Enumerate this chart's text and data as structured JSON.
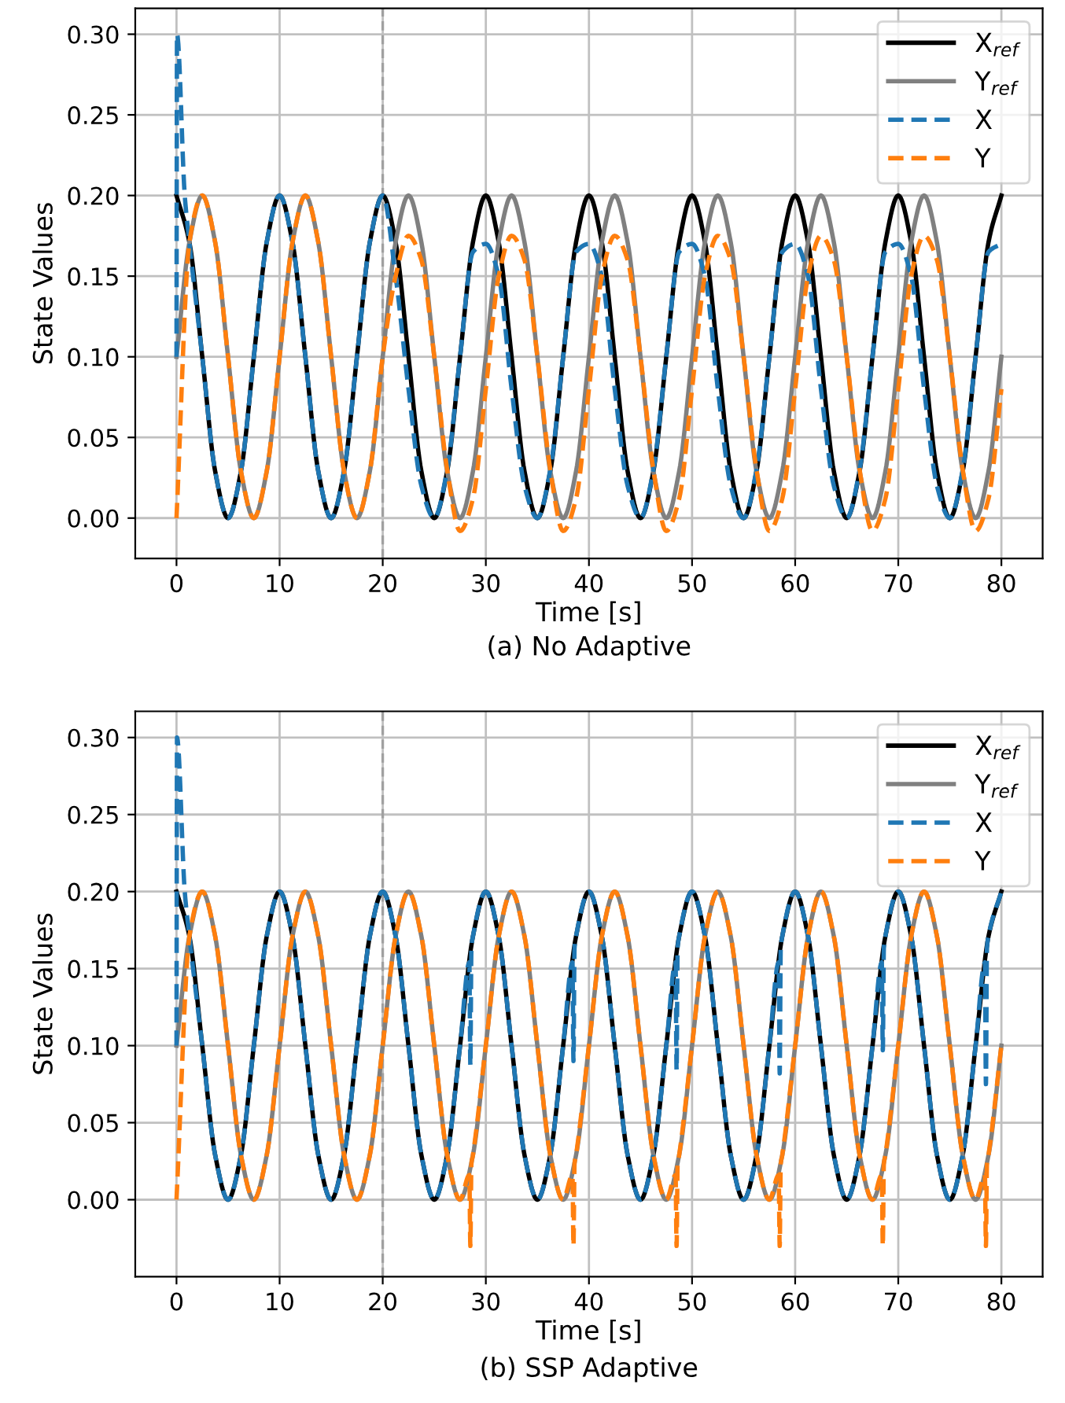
{
  "chart_data": [
    {
      "type": "line",
      "title": "(a) No Adaptive",
      "xlabel": "Time [s]",
      "ylabel": "State Values",
      "x": [
        0,
        1.25,
        2.5,
        3.75,
        5,
        6.25,
        7.5,
        8.75,
        10,
        11.25,
        12.5,
        13.75,
        15,
        16.25,
        17.5,
        18.75,
        20,
        21.25,
        22.5,
        23.75,
        25,
        26.25,
        27.5,
        28.75,
        30,
        31.25,
        32.5,
        33.75,
        35,
        36.25,
        37.5,
        38.75,
        40,
        41.25,
        42.5,
        43.75,
        45,
        46.25,
        47.5,
        48.75,
        50,
        51.25,
        52.5,
        53.75,
        55,
        56.25,
        57.5,
        58.75,
        60,
        61.25,
        62.5,
        63.75,
        65,
        66.25,
        67.5,
        68.75,
        70,
        71.25,
        72.5,
        73.75,
        75,
        76.25,
        77.5,
        78.75,
        80
      ],
      "series": [
        {
          "name": "X$_{ref}$",
          "color": "#000000",
          "line_style": "solid",
          "values": [
            0.2,
            0.171,
            0.1,
            0.029,
            0,
            0.029,
            0.1,
            0.171,
            0.2,
            0.171,
            0.1,
            0.029,
            0,
            0.029,
            0.1,
            0.171,
            0.2,
            0.171,
            0.1,
            0.029,
            0,
            0.029,
            0.1,
            0.171,
            0.2,
            0.171,
            0.1,
            0.029,
            0,
            0.029,
            0.1,
            0.171,
            0.2,
            0.171,
            0.1,
            0.029,
            0,
            0.029,
            0.1,
            0.171,
            0.2,
            0.171,
            0.1,
            0.029,
            0,
            0.029,
            0.1,
            0.171,
            0.2,
            0.171,
            0.1,
            0.029,
            0,
            0.029,
            0.1,
            0.171,
            0.2,
            0.171,
            0.1,
            0.029,
            0,
            0.029,
            0.1,
            0.171,
            0.2
          ]
        },
        {
          "name": "Y$_{ref}$",
          "color": "#808080",
          "line_style": "solid",
          "values": [
            0.1,
            0.171,
            0.2,
            0.171,
            0.1,
            0.029,
            0,
            0.029,
            0.1,
            0.171,
            0.2,
            0.171,
            0.1,
            0.029,
            0,
            0.029,
            0.1,
            0.171,
            0.2,
            0.171,
            0.1,
            0.029,
            0,
            0.029,
            0.1,
            0.171,
            0.2,
            0.171,
            0.1,
            0.029,
            0,
            0.029,
            0.1,
            0.171,
            0.2,
            0.171,
            0.1,
            0.029,
            0,
            0.029,
            0.1,
            0.171,
            0.2,
            0.171,
            0.1,
            0.029,
            0,
            0.029,
            0.1,
            0.171,
            0.2,
            0.171,
            0.1,
            0.029,
            0,
            0.029,
            0.1,
            0.171,
            0.2,
            0.171,
            0.1,
            0.029,
            0,
            0.029,
            0.1
          ]
        },
        {
          "name": "X",
          "color": "#1f77b4",
          "line_style": "dashed",
          "x": [
            0,
            0.05,
            0.8,
            1.25,
            2.5,
            3.75,
            5,
            6.25,
            7.5,
            8.75,
            10,
            11.25,
            12.5,
            13.75,
            15,
            16.25,
            17.5,
            18.75,
            20,
            21.25,
            22.5,
            23.75,
            25,
            26.25,
            27.5,
            28.75,
            30,
            31.25,
            32.5,
            33.75,
            35,
            36.25,
            37.5,
            38.75,
            40,
            41.25,
            42.5,
            43.75,
            45,
            46.25,
            47.5,
            48.75,
            50,
            51.25,
            52.5,
            53.75,
            55,
            56.25,
            57.5,
            58.75,
            60,
            61.25,
            62.5,
            63.75,
            65,
            66.25,
            67.5,
            68.75,
            70,
            71.25,
            72.5,
            73.75,
            75,
            76.25,
            77.5,
            78.75,
            80
          ],
          "values": [
            0.1,
            0.3,
            0.2,
            0.171,
            0.1,
            0.029,
            0,
            0.029,
            0.1,
            0.171,
            0.2,
            0.171,
            0.1,
            0.029,
            0,
            0.029,
            0.1,
            0.171,
            0.2,
            0.15,
            0.08,
            0.02,
            0,
            0.03,
            0.1,
            0.165,
            0.17,
            0.15,
            0.08,
            0.02,
            0,
            0.03,
            0.1,
            0.165,
            0.17,
            0.15,
            0.08,
            0.02,
            0,
            0.03,
            0.1,
            0.165,
            0.17,
            0.15,
            0.08,
            0.02,
            0,
            0.03,
            0.1,
            0.165,
            0.17,
            0.15,
            0.08,
            0.02,
            0,
            0.03,
            0.1,
            0.165,
            0.17,
            0.15,
            0.08,
            0.02,
            0,
            0.03,
            0.1,
            0.165,
            0.17
          ]
        },
        {
          "name": "Y",
          "color": "#ff7f0e",
          "line_style": "dashed",
          "values": [
            0,
            0.171,
            0.2,
            0.171,
            0.1,
            0.029,
            0,
            0.029,
            0.1,
            0.171,
            0.2,
            0.171,
            0.1,
            0.029,
            0,
            0.029,
            0.1,
            0.15,
            0.175,
            0.16,
            0.1,
            0.03,
            -0.008,
            0.012,
            0.08,
            0.15,
            0.175,
            0.16,
            0.1,
            0.03,
            -0.008,
            0.012,
            0.08,
            0.15,
            0.175,
            0.16,
            0.1,
            0.03,
            -0.008,
            0.012,
            0.08,
            0.15,
            0.175,
            0.16,
            0.1,
            0.03,
            -0.008,
            0.012,
            0.08,
            0.15,
            0.175,
            0.16,
            0.1,
            0.03,
            -0.008,
            0.012,
            0.08,
            0.15,
            0.175,
            0.16,
            0.1,
            0.03,
            -0.008,
            0.012,
            0.08
          ]
        }
      ],
      "xlim": [
        -4,
        84
      ],
      "ylim": [
        -0.025,
        0.316
      ],
      "xticks": [
        0,
        10,
        20,
        30,
        40,
        50,
        60,
        70,
        80
      ],
      "yticks": [
        {
          "value": 0,
          "label": "0.00"
        },
        {
          "value": 0.05,
          "label": "0.05"
        },
        {
          "value": 0.1,
          "label": "0.10"
        },
        {
          "value": 0.15,
          "label": "0.15"
        },
        {
          "value": 0.2,
          "label": "0.20"
        },
        {
          "value": 0.25,
          "label": "0.25"
        },
        {
          "value": 0.3,
          "label": "0.30"
        }
      ],
      "ref_lines": [
        {
          "axis": "x",
          "value": 20,
          "color": "#a0a0a0",
          "line_style": "dashed"
        }
      ],
      "grid": true,
      "legend": "top right",
      "marker": "none"
    },
    {
      "type": "line",
      "title": "(b) SSP Adaptive",
      "xlabel": "Time [s]",
      "ylabel": "State Values",
      "x": [
        0,
        1.25,
        2.5,
        3.75,
        5,
        6.25,
        7.5,
        8.75,
        10,
        11.25,
        12.5,
        13.75,
        15,
        16.25,
        17.5,
        18.75,
        20,
        21.25,
        22.5,
        23.75,
        25,
        26.25,
        27.5,
        28.75,
        30,
        31.25,
        32.5,
        33.75,
        35,
        36.25,
        37.5,
        38.75,
        40,
        41.25,
        42.5,
        43.75,
        45,
        46.25,
        47.5,
        48.75,
        50,
        51.25,
        52.5,
        53.75,
        55,
        56.25,
        57.5,
        58.75,
        60,
        61.25,
        62.5,
        63.75,
        65,
        66.25,
        67.5,
        68.75,
        70,
        71.25,
        72.5,
        73.75,
        75,
        76.25,
        77.5,
        78.75,
        80
      ],
      "series": [
        {
          "name": "X$_{ref}$",
          "color": "#000000",
          "line_style": "solid",
          "values": [
            0.2,
            0.171,
            0.1,
            0.029,
            0,
            0.029,
            0.1,
            0.171,
            0.2,
            0.171,
            0.1,
            0.029,
            0,
            0.029,
            0.1,
            0.171,
            0.2,
            0.171,
            0.1,
            0.029,
            0,
            0.029,
            0.1,
            0.171,
            0.2,
            0.171,
            0.1,
            0.029,
            0,
            0.029,
            0.1,
            0.171,
            0.2,
            0.171,
            0.1,
            0.029,
            0,
            0.029,
            0.1,
            0.171,
            0.2,
            0.171,
            0.1,
            0.029,
            0,
            0.029,
            0.1,
            0.171,
            0.2,
            0.171,
            0.1,
            0.029,
            0,
            0.029,
            0.1,
            0.171,
            0.2,
            0.171,
            0.1,
            0.029,
            0,
            0.029,
            0.1,
            0.171,
            0.2
          ]
        },
        {
          "name": "Y$_{ref}$",
          "color": "#808080",
          "line_style": "solid",
          "values": [
            0.1,
            0.171,
            0.2,
            0.171,
            0.1,
            0.029,
            0,
            0.029,
            0.1,
            0.171,
            0.2,
            0.171,
            0.1,
            0.029,
            0,
            0.029,
            0.1,
            0.171,
            0.2,
            0.171,
            0.1,
            0.029,
            0,
            0.029,
            0.1,
            0.171,
            0.2,
            0.171,
            0.1,
            0.029,
            0,
            0.029,
            0.1,
            0.171,
            0.2,
            0.171,
            0.1,
            0.029,
            0,
            0.029,
            0.1,
            0.171,
            0.2,
            0.171,
            0.1,
            0.029,
            0,
            0.029,
            0.1,
            0.171,
            0.2,
            0.171,
            0.1,
            0.029,
            0,
            0.029,
            0.1,
            0.171,
            0.2,
            0.171,
            0.1,
            0.029,
            0,
            0.029,
            0.1
          ]
        },
        {
          "name": "X",
          "color": "#1f77b4",
          "line_style": "dashed",
          "x": [
            0,
            0.05,
            0.8,
            1.25,
            2.5,
            3.75,
            5,
            6.25,
            7.5,
            8.75,
            10,
            11.25,
            12.5,
            13.75,
            15,
            16.25,
            17.5,
            18.75,
            20,
            21.25,
            22.5,
            23.75,
            25,
            26.25,
            27.5,
            28.4,
            28.5,
            28.6,
            28.75,
            30,
            31.25,
            32.5,
            33.75,
            35,
            36.25,
            37.5,
            38.4,
            38.5,
            38.6,
            38.75,
            40,
            41.25,
            42.5,
            43.75,
            45,
            46.25,
            47.5,
            48.4,
            48.5,
            48.6,
            48.75,
            50,
            51.25,
            52.5,
            53.75,
            55,
            56.25,
            57.5,
            58.4,
            58.5,
            58.6,
            58.75,
            60,
            61.25,
            62.5,
            63.75,
            65,
            66.25,
            67.5,
            68.4,
            68.5,
            68.6,
            68.75,
            70,
            71.25,
            72.5,
            73.75,
            75,
            76.25,
            77.5,
            78.4,
            78.5,
            78.6,
            78.75,
            80
          ],
          "values": [
            0.1,
            0.3,
            0.2,
            0.171,
            0.1,
            0.029,
            0,
            0.029,
            0.1,
            0.171,
            0.2,
            0.171,
            0.1,
            0.029,
            0,
            0.029,
            0.1,
            0.171,
            0.2,
            0.171,
            0.1,
            0.029,
            0,
            0.029,
            0.1,
            0.154,
            0.087,
            0.163,
            0.171,
            0.2,
            0.171,
            0.1,
            0.029,
            0,
            0.029,
            0.1,
            0.154,
            0.09,
            0.163,
            0.171,
            0.2,
            0.171,
            0.1,
            0.029,
            0,
            0.029,
            0.1,
            0.154,
            0.084,
            0.163,
            0.171,
            0.2,
            0.171,
            0.1,
            0.029,
            0,
            0.029,
            0.1,
            0.154,
            0.082,
            0.163,
            0.171,
            0.2,
            0.171,
            0.1,
            0.029,
            0,
            0.029,
            0.1,
            0.154,
            0.097,
            0.163,
            0.171,
            0.2,
            0.171,
            0.1,
            0.029,
            0,
            0.029,
            0.1,
            0.154,
            0.075,
            0.163,
            0.171,
            0.2
          ]
        },
        {
          "name": "Y",
          "color": "#ff7f0e",
          "line_style": "dashed",
          "x": [
            0,
            1.25,
            2.5,
            3.75,
            5,
            6.25,
            7.5,
            8.75,
            10,
            11.25,
            12.5,
            13.75,
            15,
            16.25,
            17.5,
            18.75,
            20,
            21.25,
            22.5,
            23.75,
            25,
            26.25,
            27.5,
            28.4,
            28.5,
            28.6,
            28.75,
            30,
            31.25,
            32.5,
            33.75,
            35,
            36.25,
            37.5,
            38.4,
            38.5,
            38.6,
            38.75,
            40,
            41.25,
            42.5,
            43.75,
            45,
            46.25,
            47.5,
            48.4,
            48.5,
            48.6,
            48.75,
            50,
            51.25,
            52.5,
            53.75,
            55,
            56.25,
            57.5,
            58.4,
            58.5,
            58.6,
            58.75,
            60,
            61.25,
            62.5,
            63.75,
            65,
            66.25,
            67.5,
            68.4,
            68.5,
            68.6,
            68.75,
            70,
            71.25,
            72.5,
            73.75,
            75,
            76.25,
            77.5,
            78.4,
            78.5,
            78.6,
            78.75,
            80
          ],
          "values": [
            0,
            0.171,
            0.2,
            0.171,
            0.1,
            0.029,
            0,
            0.029,
            0.1,
            0.171,
            0.2,
            0.171,
            0.1,
            0.029,
            0,
            0.029,
            0.1,
            0.171,
            0.2,
            0.171,
            0.1,
            0.029,
            0,
            0.016,
            -0.03,
            0.023,
            0.029,
            0.1,
            0.171,
            0.2,
            0.171,
            0.1,
            0.029,
            0,
            0.016,
            -0.03,
            0.023,
            0.029,
            0.1,
            0.171,
            0.2,
            0.171,
            0.1,
            0.029,
            0,
            0.016,
            -0.03,
            0.023,
            0.029,
            0.1,
            0.171,
            0.2,
            0.171,
            0.1,
            0.029,
            0,
            0.016,
            -0.03,
            0.023,
            0.029,
            0.1,
            0.171,
            0.2,
            0.171,
            0.1,
            0.029,
            0,
            0.016,
            -0.03,
            0.023,
            0.029,
            0.1,
            0.171,
            0.2,
            0.171,
            0.1,
            0.029,
            0,
            0.016,
            -0.03,
            0.023,
            0.029,
            0.1
          ]
        }
      ],
      "xlim": [
        -4,
        84
      ],
      "ylim": [
        -0.05,
        0.317
      ],
      "xticks": [
        0,
        10,
        20,
        30,
        40,
        50,
        60,
        70,
        80
      ],
      "yticks": [
        {
          "value": 0,
          "label": "0.00"
        },
        {
          "value": 0.05,
          "label": "0.05"
        },
        {
          "value": 0.1,
          "label": "0.10"
        },
        {
          "value": 0.15,
          "label": "0.15"
        },
        {
          "value": 0.2,
          "label": "0.20"
        },
        {
          "value": 0.25,
          "label": "0.25"
        },
        {
          "value": 0.3,
          "label": "0.30"
        }
      ],
      "ref_lines": [
        {
          "axis": "x",
          "value": 20,
          "color": "#a0a0a0",
          "line_style": "dashed"
        }
      ],
      "grid": true,
      "legend": "top right",
      "marker": "none"
    }
  ]
}
